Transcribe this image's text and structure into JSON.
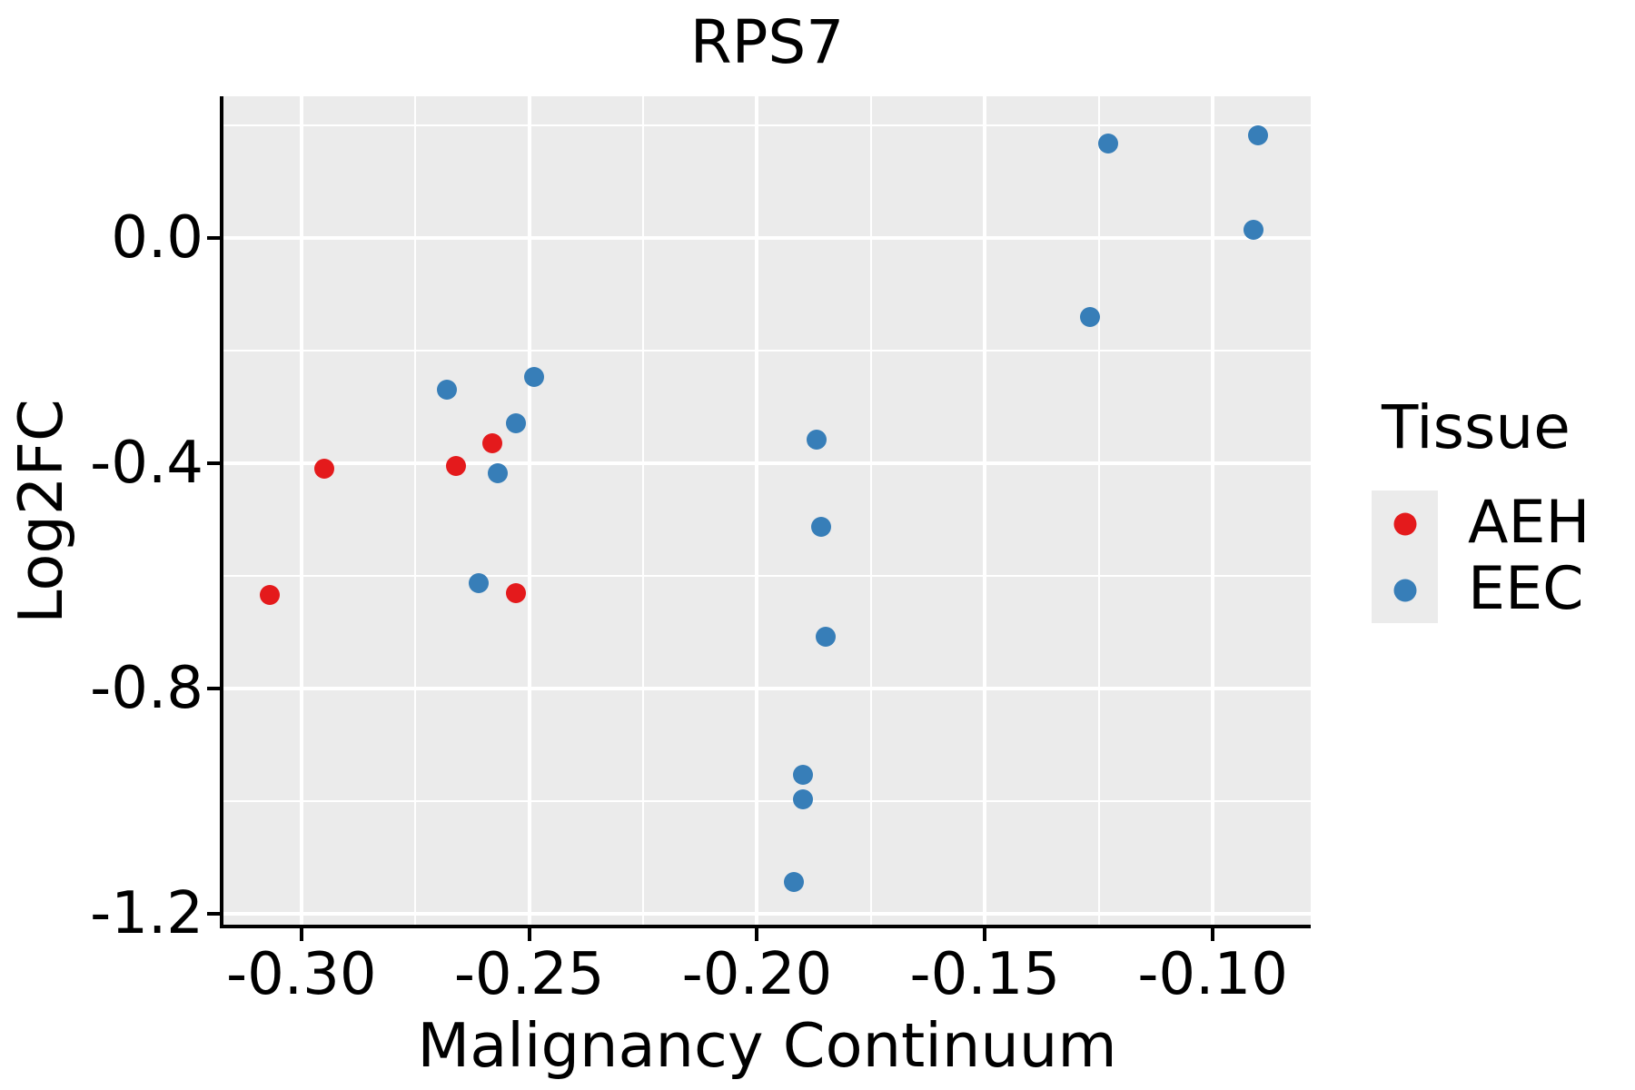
{
  "title": "RPS7",
  "colors": {
    "panel_background": "#ebebeb",
    "gridline": "#ffffff",
    "axis_line": "#000000",
    "text": "#000000",
    "aeh": "#e41a1c",
    "eec": "#377eb8"
  },
  "legend": {
    "title": "Tissue",
    "entries": [
      {
        "label": "AEH",
        "color": "#e41a1c"
      },
      {
        "label": "EEC",
        "color": "#377eb8"
      }
    ]
  },
  "chart_data": {
    "type": "scatter",
    "title": "RPS7",
    "xlabel": "Malignancy Continuum",
    "ylabel": "Log2FC",
    "xlim": [
      -0.3171,
      -0.0785
    ],
    "ylim": [
      -1.223,
      0.252
    ],
    "x_ticks": [
      -0.3,
      -0.25,
      -0.2,
      -0.15,
      -0.1
    ],
    "x_tick_labels": [
      "-0.30",
      "-0.25",
      "-0.20",
      "-0.15",
      "-0.10"
    ],
    "x_minor_ticks": [
      -0.275,
      -0.225,
      -0.175,
      -0.125
    ],
    "y_ticks": [
      0.0,
      -0.4,
      -0.8,
      -1.2
    ],
    "y_tick_labels": [
      "0.0",
      "-0.4",
      "-0.8",
      "-1.2"
    ],
    "y_minor_ticks": [
      0.2,
      -0.2,
      -0.6,
      -1.0
    ],
    "grid": true,
    "legend_position": "right",
    "legend_title": "Tissue",
    "series": [
      {
        "name": "EEC",
        "color": "#377eb8",
        "points": [
          [
            -0.268,
            -0.269
          ],
          [
            -0.249,
            -0.247
          ],
          [
            -0.253,
            -0.329
          ],
          [
            -0.257,
            -0.418
          ],
          [
            -0.261,
            -0.613
          ],
          [
            -0.187,
            -0.358
          ],
          [
            -0.186,
            -0.513
          ],
          [
            -0.185,
            -0.708
          ],
          [
            -0.19,
            -0.953
          ],
          [
            -0.19,
            -0.997
          ],
          [
            -0.192,
            -1.144
          ],
          [
            -0.123,
            0.168
          ],
          [
            -0.09,
            0.182
          ],
          [
            -0.091,
            0.015
          ],
          [
            -0.127,
            -0.14
          ]
        ]
      },
      {
        "name": "AEH",
        "color": "#e41a1c",
        "points": [
          [
            -0.307,
            -0.634
          ],
          [
            -0.295,
            -0.41
          ],
          [
            -0.266,
            -0.405
          ],
          [
            -0.258,
            -0.365
          ],
          [
            -0.253,
            -0.631
          ]
        ]
      }
    ]
  }
}
